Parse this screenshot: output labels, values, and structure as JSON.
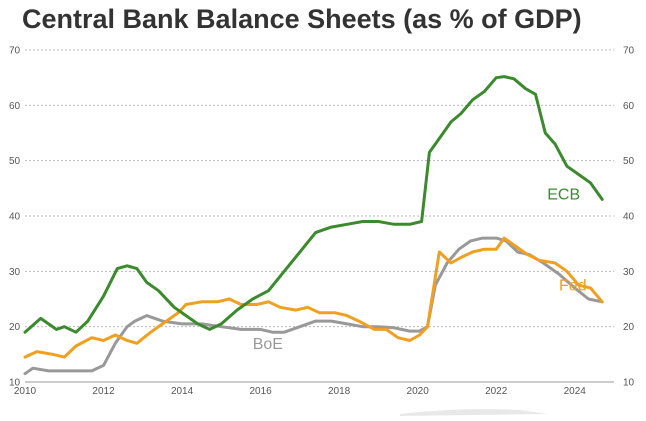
{
  "chart_data": {
    "type": "line",
    "title": "Central Bank Balance Sheets (as % of GDP)",
    "xlabel": "",
    "ylabel": "",
    "xlim": [
      2010,
      2025
    ],
    "ylim": [
      10,
      70
    ],
    "y_ticks": [
      10,
      20,
      30,
      40,
      50,
      60,
      70
    ],
    "x_ticks": [
      2010,
      2012,
      2014,
      2016,
      2018,
      2020,
      2022,
      2024
    ],
    "grid": true,
    "series": [
      {
        "name": "ECB",
        "color": "#3b8a2e",
        "x": [
          2010,
          2010.4,
          2010.8,
          2011,
          2011.3,
          2011.6,
          2012,
          2012.35,
          2012.6,
          2012.85,
          2013.1,
          2013.4,
          2013.8,
          2014.1,
          2014.4,
          2014.7,
          2015,
          2015.4,
          2015.8,
          2016.2,
          2016.6,
          2017,
          2017.4,
          2017.8,
          2018.2,
          2018.6,
          2019,
          2019.4,
          2019.8,
          2020.1,
          2020.3,
          2020.55,
          2020.85,
          2021.1,
          2021.4,
          2021.7,
          2022,
          2022.2,
          2022.45,
          2022.75,
          2023,
          2023.25,
          2023.5,
          2023.8,
          2024.1,
          2024.4,
          2024.7
        ],
        "values": [
          19,
          21.5,
          19.5,
          20,
          19,
          21,
          25.5,
          30.5,
          31,
          30.5,
          28,
          26.5,
          23.5,
          22,
          20.5,
          19.5,
          20.5,
          23,
          25,
          26.5,
          30,
          33.5,
          37,
          38,
          38.5,
          39,
          39,
          38.5,
          38.5,
          39,
          51.5,
          54,
          57,
          58.5,
          61,
          62.5,
          65,
          65.2,
          64.8,
          63,
          62,
          55,
          53,
          49,
          47.5,
          46,
          43
        ]
      },
      {
        "name": "Fed",
        "color": "#f0a020",
        "x": [
          2010,
          2010.3,
          2010.7,
          2011,
          2011.3,
          2011.7,
          2012,
          2012.3,
          2012.6,
          2012.85,
          2013.2,
          2013.6,
          2013.9,
          2014.1,
          2014.5,
          2014.9,
          2015.2,
          2015.5,
          2015.9,
          2016.2,
          2016.5,
          2016.9,
          2017.2,
          2017.5,
          2017.9,
          2018.2,
          2018.5,
          2018.9,
          2019.2,
          2019.5,
          2019.8,
          2020.05,
          2020.25,
          2020.55,
          2020.85,
          2021.1,
          2021.4,
          2021.7,
          2022,
          2022.2,
          2022.5,
          2022.8,
          2023.1,
          2023.5,
          2023.8,
          2024.1,
          2024.4,
          2024.7
        ],
        "values": [
          14.5,
          15.5,
          15,
          14.5,
          16.5,
          18,
          17.5,
          18.5,
          17.5,
          17,
          19,
          21,
          22.5,
          24,
          24.5,
          24.5,
          25,
          24,
          24,
          24.5,
          23.5,
          23,
          23.5,
          22.5,
          22.5,
          22,
          21,
          19.5,
          19.5,
          18,
          17.5,
          18.5,
          20,
          33.5,
          31.5,
          32.5,
          33.5,
          34,
          34,
          36,
          34.5,
          33,
          32,
          31.5,
          30,
          27.5,
          27,
          24.5
        ]
      },
      {
        "name": "BoE",
        "color": "#999999",
        "x": [
          2010,
          2010.2,
          2010.6,
          2011,
          2011.3,
          2011.7,
          2012,
          2012.3,
          2012.6,
          2012.8,
          2013.1,
          2013.5,
          2014,
          2014.5,
          2015,
          2015.5,
          2016,
          2016.3,
          2016.6,
          2017,
          2017.4,
          2017.8,
          2018.2,
          2018.6,
          2019,
          2019.4,
          2019.8,
          2020.05,
          2020.25,
          2020.45,
          2020.75,
          2021.05,
          2021.35,
          2021.65,
          2022,
          2022.25,
          2022.55,
          2022.85,
          2023.2,
          2023.6,
          2024,
          2024.35,
          2024.7
        ],
        "values": [
          11.5,
          12.5,
          12,
          12,
          12,
          12,
          13,
          17,
          20,
          21,
          22,
          21,
          20.5,
          20.5,
          20,
          19.5,
          19.5,
          19,
          19,
          20,
          21,
          21,
          20.5,
          20,
          20,
          19.8,
          19.2,
          19.2,
          20,
          27.5,
          31.5,
          34,
          35.5,
          36,
          36,
          35.5,
          33.5,
          33,
          31.5,
          29.5,
          27,
          25,
          24.5
        ]
      }
    ],
    "labels": [
      {
        "text": "ECB",
        "series": "ECB",
        "x": 2023.3,
        "y": 43
      },
      {
        "text": "Fed",
        "series": "Fed",
        "x": 2023.6,
        "y": 26.5
      },
      {
        "text": "BoE",
        "series": "BoE",
        "x": 2015.8,
        "y": 16
      }
    ]
  }
}
